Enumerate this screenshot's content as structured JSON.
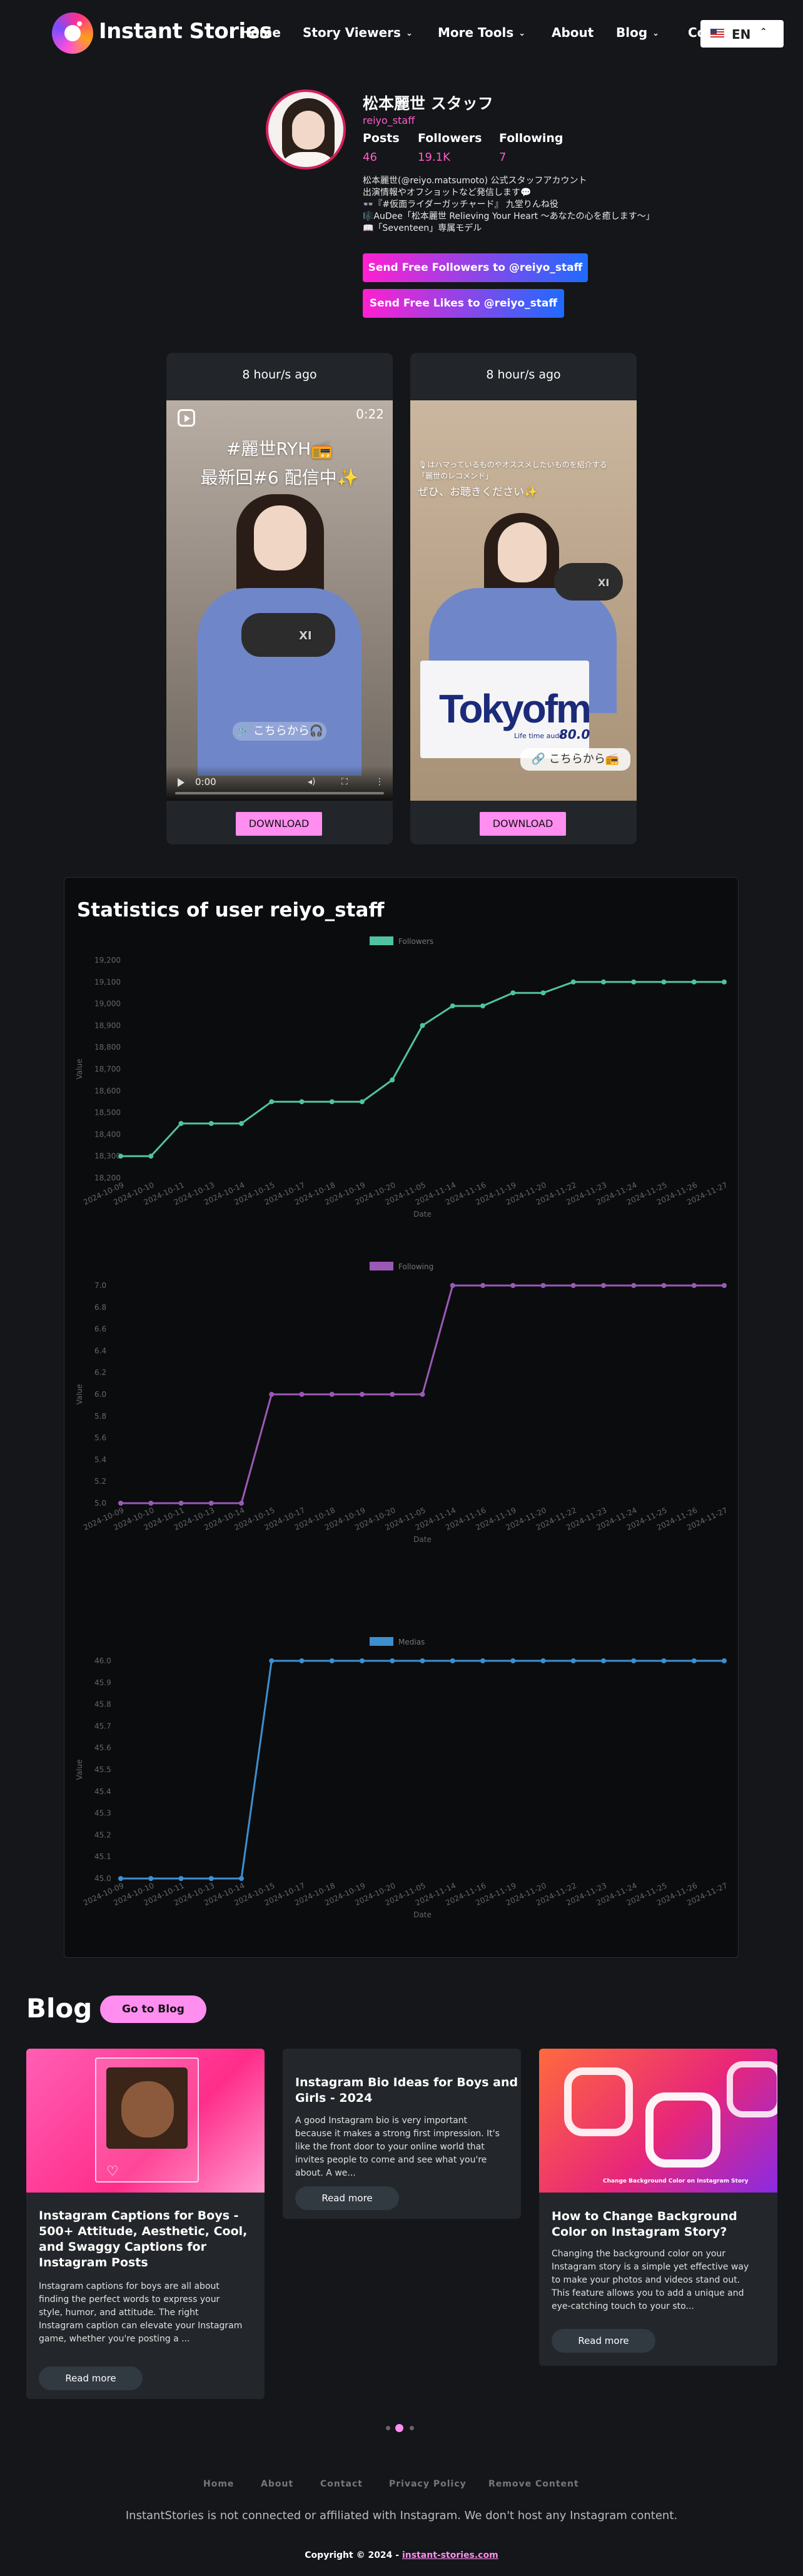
{
  "nav": {
    "brand": "Instant Stories",
    "links": [
      "Home",
      "Story Viewers",
      "More Tools",
      "About",
      "Blog",
      "Co"
    ],
    "lang": "EN"
  },
  "profile": {
    "name": "松本麗世 スタッフ",
    "username": "reiyo_staff",
    "stats": [
      {
        "label": "Posts",
        "value": "46"
      },
      {
        "label": "Followers",
        "value": "19.1K"
      },
      {
        "label": "Following",
        "value": "7"
      }
    ],
    "bio": [
      "松本麗世(@reiyo.matsumoto) 公式スタッフアカウント",
      "出演情報やオフショットなど発信します💬",
      "👓『#仮面ライダーガッチャード』 九堂りんね役",
      "🎼AuDee「松本麗世 Relieving Your Heart 〜あなたの心を癒します〜」",
      "📖「Seventeen」専属モデル"
    ],
    "cta_followers": "Send Free Followers to @reiyo_staff",
    "cta_likes": "Send Free Likes to @reiyo_staff"
  },
  "stories": [
    {
      "time": "8 hour/s ago",
      "overlay1": "#麗世RYH📻",
      "overlay2": "最新回#6 配信中✨",
      "pill": "🔗 こちらから🎧",
      "duration": "0:22",
      "player_time": "0:00",
      "mic_label": "XI",
      "download": "DOWNLOAD"
    },
    {
      "time": "8 hour/s ago",
      "overlay1": "🎙はハマっているものやオススメしたいものを紹介する",
      "overlay2": "「麗世のレコメンド」",
      "overlay3": "ぜひ、お聴きください✨",
      "pill": "🔗 こちらから📻",
      "board_brand": "Tokyofm",
      "board_sub": "Life time audio",
      "board_freq": "80.0",
      "mic_label": "XI",
      "download": "DOWNLOAD"
    }
  ],
  "stats": {
    "title": "Statistics of user reiyo_staff"
  },
  "chart_data": [
    {
      "type": "line",
      "series": [
        {
          "name": "Followers",
          "values": [
            18300,
            18300,
            18450,
            18450,
            18450,
            18550,
            18550,
            18550,
            18550,
            18650,
            18900,
            18990,
            18990,
            19050,
            19050,
            19100,
            19100,
            19100,
            19100,
            19100,
            19100
          ]
        }
      ],
      "x": [
        "2024-10-09",
        "2024-10-10",
        "2024-10-11",
        "2024-10-13",
        "2024-10-14",
        "2024-10-15",
        "2024-10-17",
        "2024-10-18",
        "2024-10-19",
        "2024-10-20",
        "2024-11-05",
        "2024-11-14",
        "2024-11-16",
        "2024-11-19",
        "2024-11-20",
        "2024-11-22",
        "2024-11-23",
        "2024-11-24",
        "2024-11-25",
        "2024-11-26",
        "2024-11-27"
      ],
      "xlabel": "Date",
      "ylabel": "Value",
      "ylim": [
        18200,
        19200
      ],
      "yticks": [
        18200,
        18300,
        18400,
        18500,
        18600,
        18700,
        18800,
        18900,
        19000,
        19100,
        19200
      ],
      "color": "#4fc3a1"
    },
    {
      "type": "line",
      "series": [
        {
          "name": "Following",
          "values": [
            5,
            5,
            5,
            5,
            5,
            6,
            6,
            6,
            6,
            6,
            6,
            7,
            7,
            7,
            7,
            7,
            7,
            7,
            7,
            7,
            7
          ]
        }
      ],
      "x": [
        "2024-10-09",
        "2024-10-10",
        "2024-10-11",
        "2024-10-13",
        "2024-10-14",
        "2024-10-15",
        "2024-10-17",
        "2024-10-18",
        "2024-10-19",
        "2024-10-20",
        "2024-11-05",
        "2024-11-14",
        "2024-11-16",
        "2024-11-19",
        "2024-11-20",
        "2024-11-22",
        "2024-11-23",
        "2024-11-24",
        "2024-11-25",
        "2024-11-26",
        "2024-11-27"
      ],
      "xlabel": "Date",
      "ylabel": "Value",
      "ylim": [
        5.0,
        7.0
      ],
      "yticks": [
        5.0,
        5.2,
        5.4,
        5.6,
        5.8,
        6.0,
        6.2,
        6.4,
        6.6,
        6.8,
        7.0
      ],
      "color": "#9b59b6"
    },
    {
      "type": "line",
      "series": [
        {
          "name": "Medias",
          "values": [
            45,
            45,
            45,
            45,
            45,
            46,
            46,
            46,
            46,
            46,
            46,
            46,
            46,
            46,
            46,
            46,
            46,
            46,
            46,
            46,
            46
          ]
        }
      ],
      "x": [
        "2024-10-09",
        "2024-10-10",
        "2024-10-11",
        "2024-10-13",
        "2024-10-14",
        "2024-10-15",
        "2024-10-17",
        "2024-10-18",
        "2024-10-19",
        "2024-10-20",
        "2024-11-05",
        "2024-11-14",
        "2024-11-16",
        "2024-11-19",
        "2024-11-20",
        "2024-11-22",
        "2024-11-23",
        "2024-11-24",
        "2024-11-25",
        "2024-11-26",
        "2024-11-27"
      ],
      "xlabel": "Date",
      "ylabel": "Value",
      "ylim": [
        45.0,
        46.0
      ],
      "yticks": [
        45.0,
        45.1,
        45.2,
        45.3,
        45.4,
        45.5,
        45.6,
        45.7,
        45.8,
        45.9,
        46.0
      ],
      "color": "#3d8fd0"
    }
  ],
  "blog": {
    "heading": "Blog",
    "button": "Go to Blog",
    "posts": [
      {
        "title": [
          "Instagram Captions for Boys -",
          "500+ Attitude, Aesthetic, Cool,",
          "and Swaggy Captions for",
          "Instagram Posts"
        ],
        "excerpt": [
          "Instagram captions for boys are all about",
          "finding the perfect words to express your",
          "style, humor, and attitude. The right",
          "Instagram caption can elevate your Instagram",
          "game, whether you're posting a ..."
        ],
        "read": "Read more"
      },
      {
        "title": [
          "Instagram Bio Ideas for Boys and",
          "Girls - 2024"
        ],
        "excerpt": [
          "A good Instagram bio is very important",
          "because it makes a strong first impression. It's",
          "like the front door to your online world that",
          "invites people to come and see what you're",
          "about. A we..."
        ],
        "read": "Read more"
      },
      {
        "title": [
          "How to Change Background",
          "Color on Instagram Story?"
        ],
        "excerpt": [
          "Changing the background color on your",
          "Instagram story is a simple yet effective way",
          "to make your photos and videos stand out.",
          "This feature allows you to add a unique and",
          "eye-catching touch to your sto..."
        ],
        "read": "Read more",
        "image_caption": "Change Background Color on Instagram Story"
      }
    ]
  },
  "footer": {
    "links": [
      "Home",
      "About",
      "Contact",
      "Privacy Policy",
      "Remove Content"
    ],
    "note": "InstantStories is not connected or affiliated with Instagram. We don't host any Instagram content.",
    "copyright": "Copyright © 2024 - ",
    "site": "instant-stories.com"
  }
}
